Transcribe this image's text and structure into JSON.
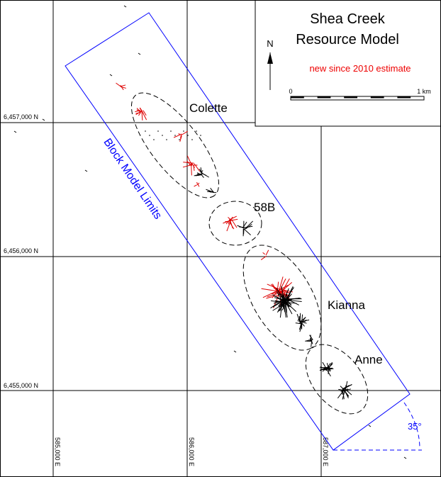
{
  "title": [
    "Shea Creek",
    "Resource Model"
  ],
  "north": "N",
  "legend_note": "new since 2010 estimate",
  "scale": {
    "start": "0",
    "end": "1 km"
  },
  "northings": [
    "6,457,000 N",
    "6,456,000 N",
    "6,455,000 N"
  ],
  "eastings": [
    "585,000 E",
    "586,000 E",
    "587,000 E"
  ],
  "deposits": [
    "Colette",
    "58B",
    "Kianna",
    "Anne"
  ],
  "block_label": "Block Model Limits",
  "angle": "35°"
}
